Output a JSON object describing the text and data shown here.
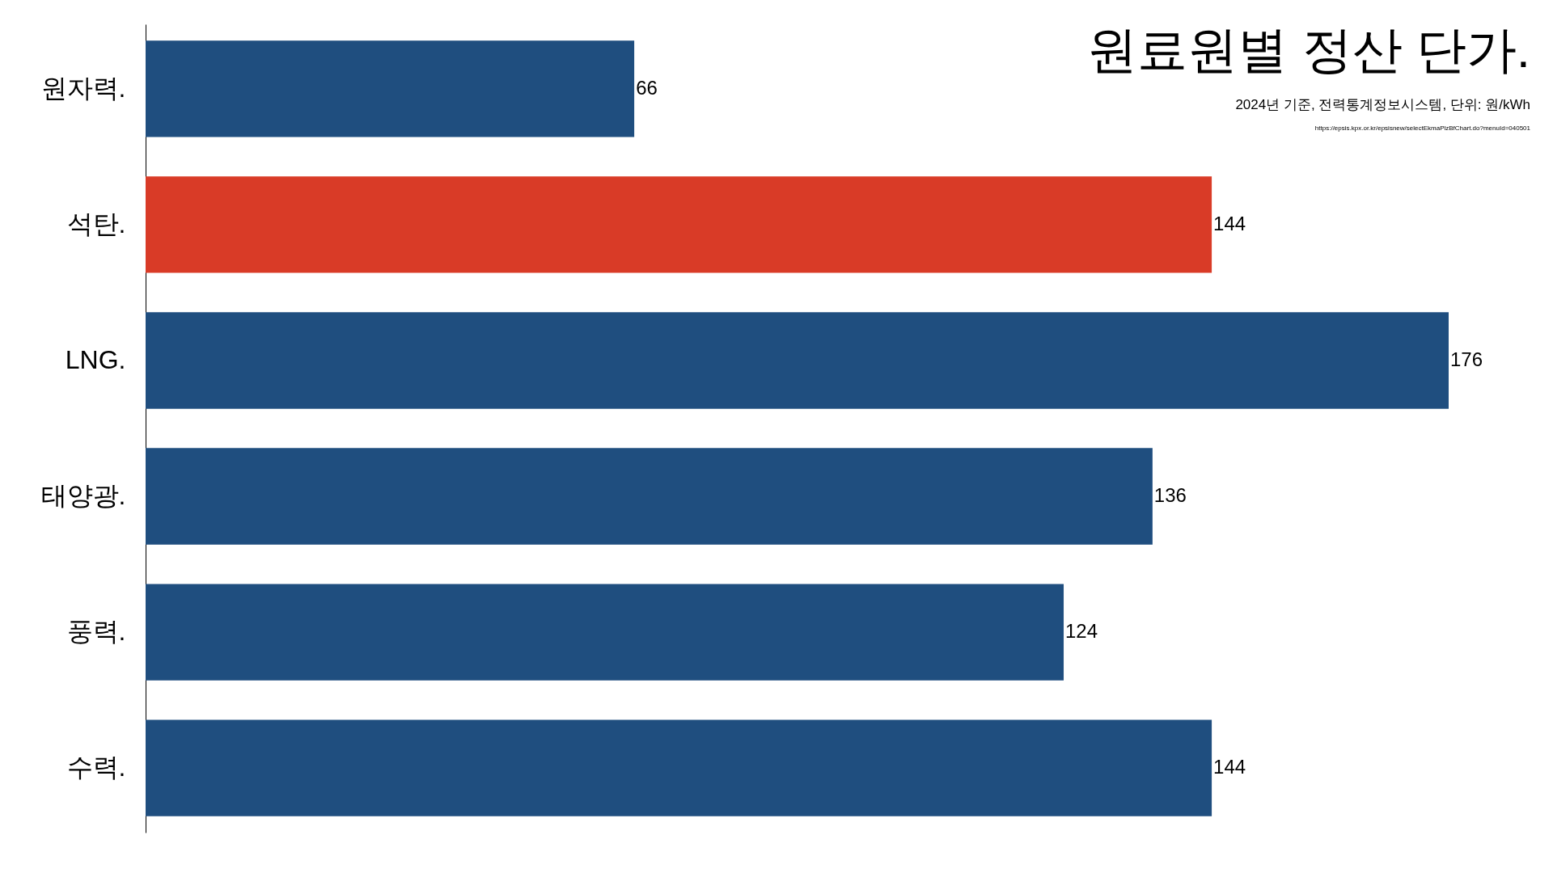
{
  "chart_data": {
    "type": "bar",
    "orientation": "horizontal",
    "title": "원료원별 정산 단가.",
    "subtitle": "2024년 기준, 전력통계정보시스템, 단위:  원/kWh",
    "annotations": [
      "https://epsis.kpx.or.kr/epsisnew/selectEkmaPlzBfChart.do?menuId=040501"
    ],
    "categories": [
      "원자력.",
      "석탄.",
      "LNG.",
      "태양광.",
      "풍력.",
      "수력."
    ],
    "values": [
      66,
      144,
      176,
      136,
      124,
      144
    ],
    "colors": [
      "#1f4e7f",
      "#d93b27",
      "#1f4e7f",
      "#1f4e7f",
      "#1f4e7f",
      "#1f4e7f"
    ],
    "data_labels": true
  }
}
